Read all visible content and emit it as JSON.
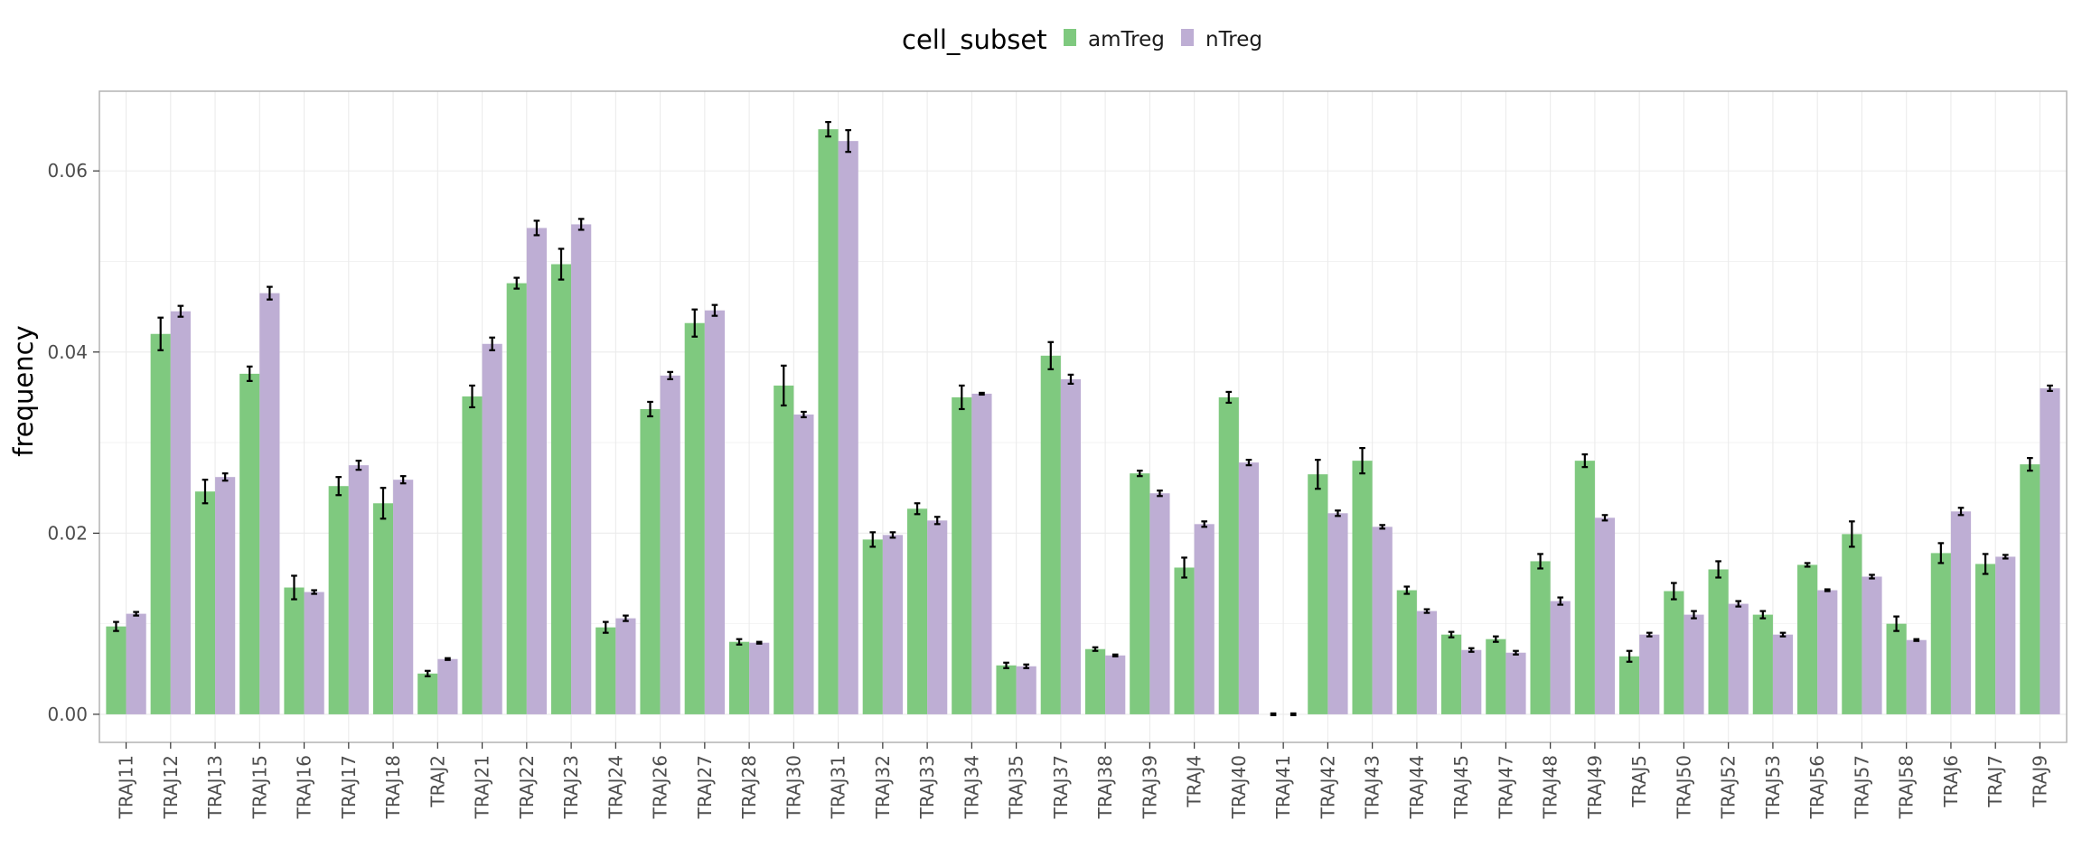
{
  "chart_data": {
    "type": "bar",
    "title": "",
    "xlabel": "",
    "ylabel": "frequency",
    "ylim": [
      -0.0031,
      0.0688
    ],
    "yticks": [
      0.0,
      0.02,
      0.04,
      0.06
    ],
    "ytick_labels": [
      "0.00",
      "0.02",
      "0.04",
      "0.06"
    ],
    "grid": true,
    "legend": {
      "title": "cell_subset",
      "position": "top"
    },
    "categories": [
      "TRAJ11",
      "TRAJ12",
      "TRAJ13",
      "TRAJ15",
      "TRAJ16",
      "TRAJ17",
      "TRAJ18",
      "TRAJ2",
      "TRAJ21",
      "TRAJ22",
      "TRAJ23",
      "TRAJ24",
      "TRAJ26",
      "TRAJ27",
      "TRAJ28",
      "TRAJ30",
      "TRAJ31",
      "TRAJ32",
      "TRAJ33",
      "TRAJ34",
      "TRAJ35",
      "TRAJ37",
      "TRAJ38",
      "TRAJ39",
      "TRAJ4",
      "TRAJ40",
      "TRAJ41",
      "TRAJ42",
      "TRAJ43",
      "TRAJ44",
      "TRAJ45",
      "TRAJ47",
      "TRAJ48",
      "TRAJ49",
      "TRAJ5",
      "TRAJ50",
      "TRAJ52",
      "TRAJ53",
      "TRAJ56",
      "TRAJ57",
      "TRAJ58",
      "TRAJ6",
      "TRAJ7",
      "TRAJ9"
    ],
    "series": [
      {
        "name": "amTreg",
        "color": "#7fc97f",
        "values": [
          0.0097,
          0.042,
          0.0246,
          0.0376,
          0.014,
          0.0252,
          0.0233,
          0.0045,
          0.0351,
          0.0476,
          0.0497,
          0.0096,
          0.0337,
          0.0432,
          0.008,
          0.0363,
          0.0646,
          0.0193,
          0.0227,
          0.035,
          0.0054,
          0.0396,
          0.0072,
          0.0266,
          0.0162,
          0.035,
          0.0,
          0.0265,
          0.028,
          0.0137,
          0.0088,
          0.0083,
          0.0169,
          0.028,
          0.0064,
          0.0136,
          0.016,
          0.011,
          0.0165,
          0.0199,
          0.01,
          0.0178,
          0.0166,
          0.0276
        ],
        "errors": [
          0.0005,
          0.0018,
          0.0013,
          0.0008,
          0.0013,
          0.001,
          0.0017,
          0.0003,
          0.0012,
          0.0006,
          0.0017,
          0.0006,
          0.0008,
          0.0015,
          0.0003,
          0.0022,
          0.0008,
          0.0008,
          0.0006,
          0.0013,
          0.0003,
          0.0015,
          0.0002,
          0.0003,
          0.0011,
          0.0006,
          0.0001,
          0.0016,
          0.0014,
          0.0004,
          0.0003,
          0.0003,
          0.0008,
          0.0007,
          0.0006,
          0.0009,
          0.0009,
          0.0004,
          0.0002,
          0.0014,
          0.0008,
          0.0011,
          0.0011,
          0.0007
        ]
      },
      {
        "name": "nTreg",
        "color": "#beaed4",
        "values": [
          0.0111,
          0.0445,
          0.0262,
          0.0465,
          0.0135,
          0.0275,
          0.0259,
          0.0061,
          0.0409,
          0.0537,
          0.0541,
          0.0106,
          0.0374,
          0.0446,
          0.0079,
          0.0331,
          0.0633,
          0.0198,
          0.0214,
          0.0354,
          0.0053,
          0.037,
          0.0065,
          0.0244,
          0.021,
          0.0278,
          0.0,
          0.0222,
          0.0207,
          0.0114,
          0.0071,
          0.0068,
          0.0125,
          0.0217,
          0.0088,
          0.011,
          0.0122,
          0.0088,
          0.0137,
          0.0152,
          0.0082,
          0.0224,
          0.0174,
          0.036
        ],
        "errors": [
          0.0002,
          0.0006,
          0.0004,
          0.0007,
          0.0002,
          0.0005,
          0.0004,
          0.0001,
          0.0007,
          0.0008,
          0.0006,
          0.0003,
          0.0004,
          0.0006,
          0.0001,
          0.0003,
          0.0012,
          0.0003,
          0.0004,
          0.0001,
          0.0002,
          0.0005,
          0.0001,
          0.0003,
          0.0003,
          0.0003,
          0.0001,
          0.0003,
          0.0002,
          0.0002,
          0.0002,
          0.0002,
          0.0004,
          0.0003,
          0.0002,
          0.0004,
          0.0003,
          0.0002,
          0.0001,
          0.0002,
          0.0001,
          0.0004,
          0.0002,
          0.0003
        ]
      }
    ]
  }
}
